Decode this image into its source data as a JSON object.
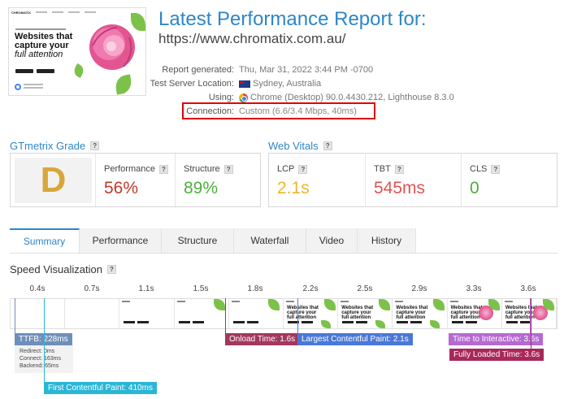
{
  "report": {
    "title": "Latest Performance Report for:",
    "url": "https://www.chromatix.com.au/"
  },
  "thumbnail": {
    "brand": "CHROMATIX",
    "headline_line1": "Websites that",
    "headline_line2": "capture your",
    "headline_line3": "full attention"
  },
  "meta": [
    {
      "label": "Report generated:",
      "value": "Thu, Mar 31, 2022 3:44 PM -0700",
      "icon": ""
    },
    {
      "label": "Test Server Location:",
      "value": "Sydney, Australia",
      "icon": "australia-flag-icon"
    },
    {
      "label": "Using:",
      "value": "Chrome (Desktop) 90.0.4430.212, Lighthouse 8.3.0",
      "icon": "chrome-icon"
    },
    {
      "label": "Connection:",
      "value": "Custom (6.6/3.4 Mbps, 40ms)",
      "icon": ""
    }
  ],
  "grade": {
    "title": "GTmetrix Grade",
    "help": "?",
    "letter": "D",
    "performance_label": "Performance",
    "performance_value": "56%",
    "structure_label": "Structure",
    "structure_value": "89%"
  },
  "vitals": {
    "title": "Web Vitals",
    "help": "?",
    "lcp_label": "LCP",
    "lcp_value": "2.1s",
    "tbt_label": "TBT",
    "tbt_value": "545ms",
    "cls_label": "CLS",
    "cls_value": "0"
  },
  "tabs": [
    "Summary",
    "Performance",
    "Structure",
    "Waterfall",
    "Video",
    "History"
  ],
  "speed": {
    "title": "Speed Visualization",
    "help": "?",
    "ticks": [
      "0.4s",
      "0.7s",
      "1.1s",
      "1.5s",
      "1.8s",
      "2.2s",
      "2.5s",
      "2.9s",
      "3.3s",
      "3.6s"
    ],
    "ttfb": "TTFB: 228ms",
    "redirect": "Redirect: 0ms",
    "connect": "Connect: 163ms",
    "backend": "Backend: 65ms",
    "fcp": "First Contentful Paint: 410ms",
    "onload": "Onload Time: 1.6s",
    "lcp": "Largest Contentful Paint: 2.1s",
    "tti": "Time to Interactive: 3.6s",
    "fully_loaded": "Fully Loaded Time: 3.6s"
  },
  "colors": {
    "accent": "#2d86c8",
    "grade_d": "#d8a63a",
    "performance": "#c0392b",
    "structure": "#4cae3c",
    "lcp": "#f0b42a",
    "tbt": "#e05252",
    "cls": "#4cae3c",
    "ttfb": "#6f8fba",
    "fcp": "#2ab6d6",
    "onload": "#a2385e",
    "lcp_marker": "#4a78d6",
    "tti": "#b56ad0",
    "fully_loaded": "#a8285a"
  }
}
